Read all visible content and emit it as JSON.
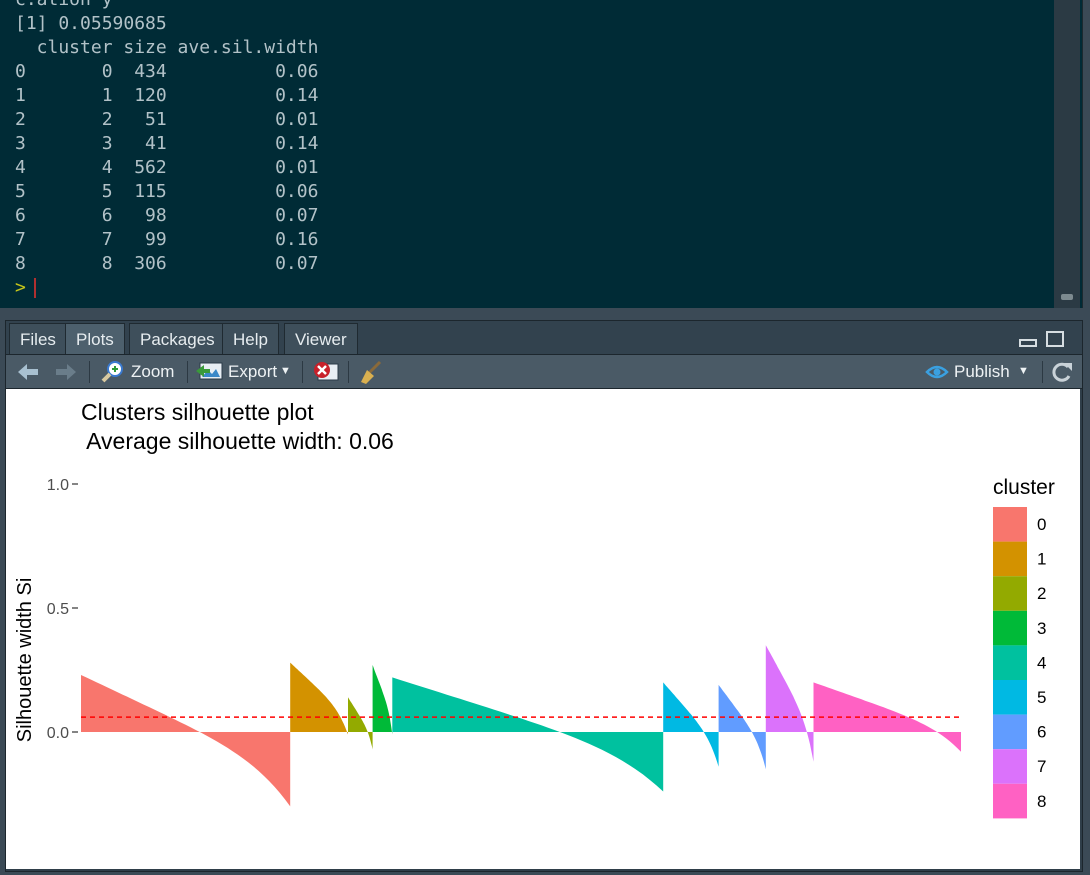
{
  "console": {
    "lines": [
      "c.ation y",
      "[1] 0.05590685",
      "  cluster size ave.sil.width",
      "0       0  434          0.06",
      "1       1  120          0.14",
      "2       2   51          0.01",
      "3       3   41          0.14",
      "4       4  562          0.01",
      "5       5  115          0.06",
      "6       6   98          0.07",
      "7       7   99          0.16",
      "8       8  306          0.07"
    ],
    "prompt": ">"
  },
  "tabs": [
    {
      "label": "Files",
      "active": false
    },
    {
      "label": "Plots",
      "active": true
    },
    {
      "label": "Packages",
      "active": false
    },
    {
      "label": "Help",
      "active": false
    },
    {
      "label": "Viewer",
      "active": false
    }
  ],
  "toolbar": {
    "zoom_label": "Zoom",
    "export_label": "Export",
    "publish_label": "Publish"
  },
  "chart_data": {
    "type": "bar",
    "title": "Clusters silhouette plot",
    "subtitle": " Average silhouette width: 0.06",
    "ylabel": "Silhouette width Si",
    "xlabel": "",
    "ylim": [
      -0.32,
      1.0
    ],
    "yticks": [
      {
        "value": 0.0,
        "label": "0.0"
      },
      {
        "value": 0.5,
        "label": "0.5"
      },
      {
        "value": 1.0,
        "label": "1.0"
      }
    ],
    "average_line": 0.06,
    "average_line_color": "#ff0000",
    "legend_title": "cluster",
    "legend_position": "right",
    "clusters": [
      {
        "name": "0",
        "size": 434,
        "color": "#F8766D",
        "max": 0.23,
        "min": -0.3
      },
      {
        "name": "1",
        "size": 120,
        "color": "#D39200",
        "max": 0.28,
        "min": -0.01
      },
      {
        "name": "2",
        "size": 51,
        "color": "#93AA00",
        "max": 0.14,
        "min": -0.07
      },
      {
        "name": "3",
        "size": 41,
        "color": "#00BA38",
        "max": 0.27,
        "min": -0.01
      },
      {
        "name": "4",
        "size": 562,
        "color": "#00C19F",
        "max": 0.22,
        "min": -0.24
      },
      {
        "name": "5",
        "size": 115,
        "color": "#00B9E3",
        "max": 0.2,
        "min": -0.14
      },
      {
        "name": "6",
        "size": 98,
        "color": "#619CFF",
        "max": 0.19,
        "min": -0.15
      },
      {
        "name": "7",
        "size": 99,
        "color": "#DB72FB",
        "max": 0.35,
        "min": -0.12
      },
      {
        "name": "8",
        "size": 306,
        "color": "#FF61C3",
        "max": 0.2,
        "min": -0.08
      }
    ]
  }
}
